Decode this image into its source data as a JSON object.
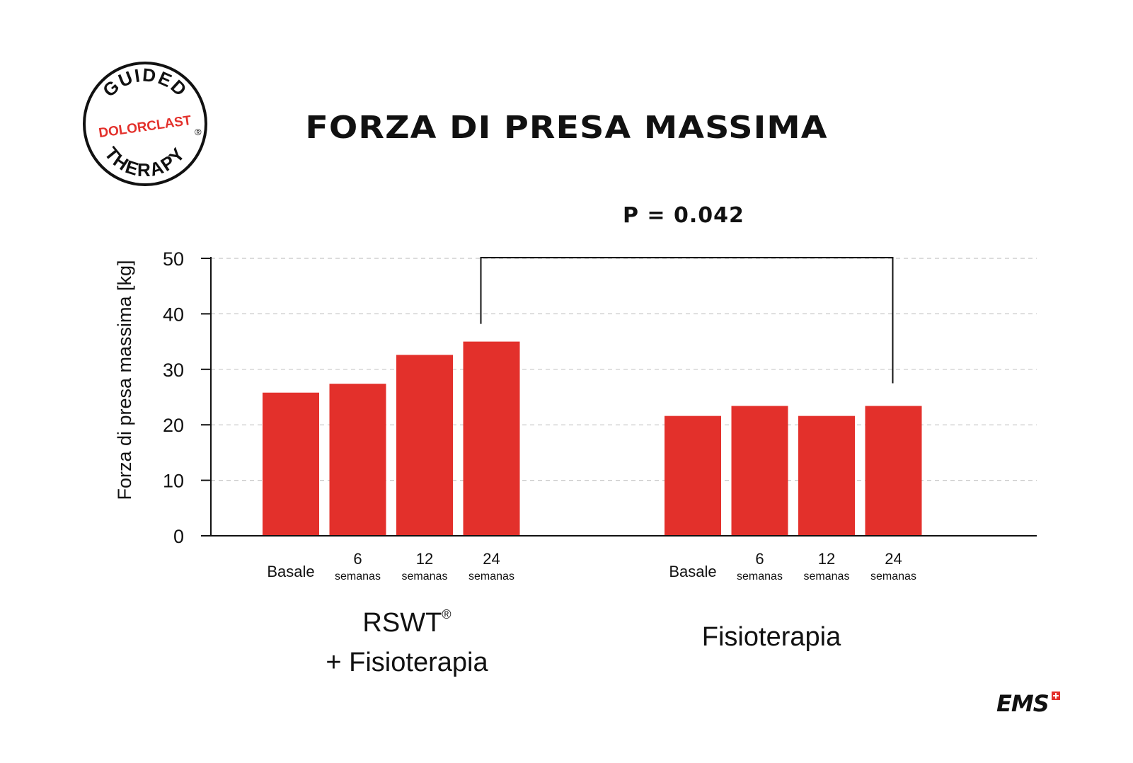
{
  "logo": {
    "line1": "GUIDED",
    "line2": "DOLORCLAST",
    "line3": "THERAPY",
    "registered": "®"
  },
  "brand": {
    "name": "EMS"
  },
  "chart_data": {
    "type": "bar",
    "title": "FORZA DI PRESA MASSIMA",
    "ylabel": "Forza di presa massima [kg]",
    "xlabel": "",
    "ylim": [
      0,
      50
    ],
    "yticks": [
      0,
      10,
      20,
      30,
      40,
      50
    ],
    "grid": "horizontal dashed",
    "bar_color": "#e3302b",
    "annotation": "P = 0.042",
    "groups": [
      {
        "label_line1": "RSWT",
        "label_sup": "®",
        "label_line2": "+ Fisioterapia",
        "bars": [
          {
            "label_top": "",
            "label_bottom": "Basale",
            "value": 25.8
          },
          {
            "label_top": "6",
            "label_bottom": "semanas",
            "value": 27.4
          },
          {
            "label_top": "12",
            "label_bottom": "semanas",
            "value": 32.6
          },
          {
            "label_top": "24",
            "label_bottom": "semanas",
            "value": 35.0
          }
        ]
      },
      {
        "label_line1": "Fisioterapia",
        "label_sup": "",
        "label_line2": "",
        "bars": [
          {
            "label_top": "",
            "label_bottom": "Basale",
            "value": 21.6
          },
          {
            "label_top": "6",
            "label_bottom": "semanas",
            "value": 23.4
          },
          {
            "label_top": "12",
            "label_bottom": "semanas",
            "value": 21.6
          },
          {
            "label_top": "24",
            "label_bottom": "semanas",
            "value": 23.4
          }
        ]
      }
    ]
  }
}
